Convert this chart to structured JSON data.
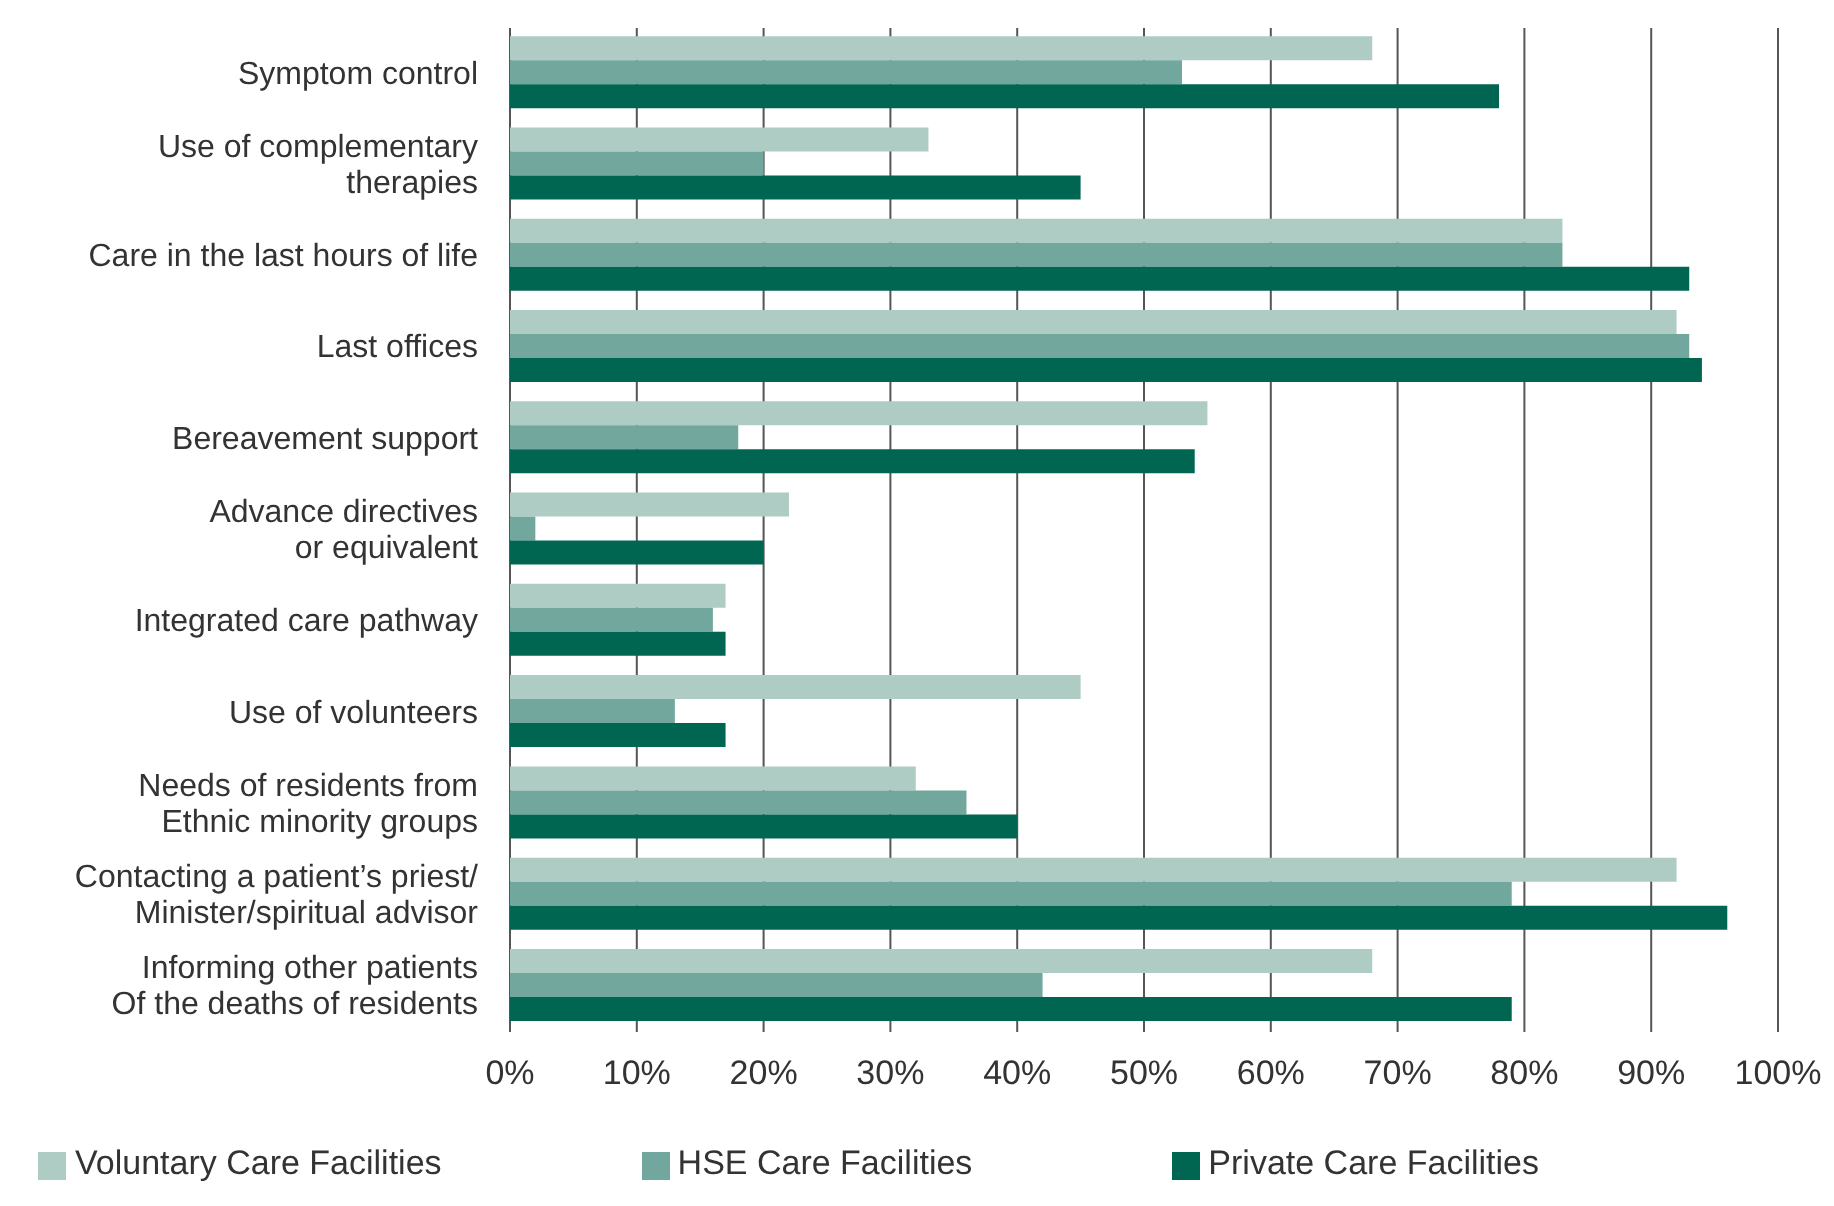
{
  "chart_data": {
    "type": "bar",
    "orientation": "horizontal",
    "categories": [
      "Symptom control",
      "Use of complementary\ntherapies",
      "Care in the last hours of life",
      "Last offices",
      "Bereavement support",
      "Advance directives\nor equivalent",
      "Integrated care pathway",
      "Use of volunteers",
      "Needs of residents from\nEthnic minority groups",
      "Contacting a patient’s priest/\nMinister/spiritual advisor",
      "Informing other patients\nOf the deaths of residents"
    ],
    "series": [
      {
        "name": "Voluntary Care Facilities",
        "color": "#aecbc4",
        "values": [
          68,
          33,
          83,
          92,
          55,
          22,
          17,
          45,
          32,
          92,
          68
        ]
      },
      {
        "name": "HSE Care Facilities",
        "color": "#71a79c",
        "values": [
          53,
          20,
          83,
          93,
          18,
          2,
          16,
          13,
          36,
          79,
          42
        ]
      },
      {
        "name": "Private Care Facilities",
        "color": "#006652",
        "values": [
          78,
          45,
          93,
          94,
          54,
          20,
          17,
          17,
          40,
          96,
          79
        ]
      }
    ],
    "xlim": [
      0,
      100
    ],
    "xticks": [
      {
        "value": 0,
        "label": "0%"
      },
      {
        "value": 10,
        "label": "10%"
      },
      {
        "value": 20,
        "label": "20%"
      },
      {
        "value": 30,
        "label": "30%"
      },
      {
        "value": 40,
        "label": "40%"
      },
      {
        "value": 50,
        "label": "50%"
      },
      {
        "value": 60,
        "label": "60%"
      },
      {
        "value": 70,
        "label": "70%"
      },
      {
        "value": 80,
        "label": "80%"
      },
      {
        "value": 90,
        "label": "90%"
      },
      {
        "value": 100,
        "label": "100%"
      }
    ],
    "grid": "x",
    "legend": "bottom"
  }
}
